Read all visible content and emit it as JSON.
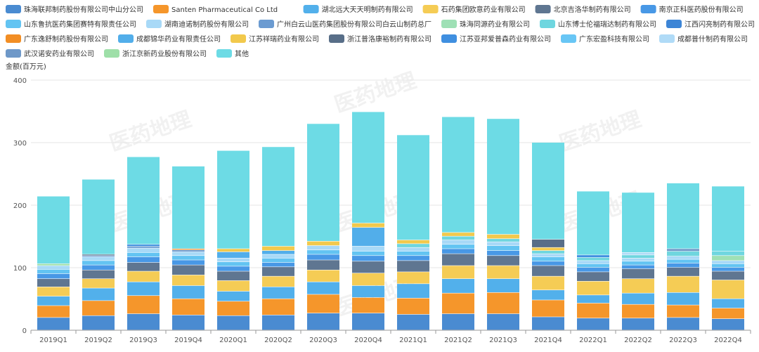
{
  "chart_data": {
    "type": "bar",
    "stacked": true,
    "ylabel": "金额(百万元)",
    "ylim": [
      0,
      400
    ],
    "yticks": [
      0,
      100,
      200,
      300,
      400
    ],
    "watermark": "医药地理",
    "categories": [
      "2019Q1",
      "2019Q2",
      "2019Q3",
      "2019Q4",
      "2020Q1",
      "2020Q2",
      "2020Q3",
      "2020Q4",
      "2021Q1",
      "2021Q2",
      "2021Q3",
      "2021Q4",
      "2022Q1",
      "2022Q2",
      "2022Q3",
      "2022Q4"
    ],
    "series": [
      {
        "name": "珠海联邦制药股份有限公司中山分公司",
        "color": "#4a8bd1",
        "values": [
          20,
          23,
          26,
          24,
          23,
          24,
          27,
          27,
          25,
          26,
          26,
          21,
          19,
          19,
          20,
          18
        ]
      },
      {
        "name": "Santen Pharmaceutical Co Ltd",
        "color": "#f5962b",
        "values": [
          19,
          24,
          29,
          26,
          23,
          26,
          30,
          25,
          26,
          33,
          34,
          27,
          24,
          22,
          20,
          17
        ]
      },
      {
        "name": "湖北远大天天明制药有限公司",
        "color": "#52b0eb",
        "values": [
          15,
          20,
          22,
          21,
          16,
          19,
          20,
          19,
          23,
          23,
          22,
          16,
          13,
          18,
          20,
          15
        ]
      },
      {
        "name": "石药集团欧意药业有限公司",
        "color": "#f5cc55",
        "values": [
          15,
          15,
          17,
          17,
          17,
          17,
          19,
          20,
          19,
          21,
          21,
          22,
          22,
          23,
          26,
          30
        ]
      },
      {
        "name": "北京吉洛华制药有限公司",
        "color": "#5f7691",
        "values": [
          13,
          14,
          14,
          16,
          15,
          15,
          16,
          19,
          18,
          19,
          16,
          17,
          15,
          16,
          14,
          14
        ]
      },
      {
        "name": "南京正科医药股份有限公司",
        "color": "#4898e6",
        "values": [
          8,
          8,
          9,
          8,
          8,
          7,
          9,
          9,
          8,
          8,
          8,
          7,
          7,
          6,
          7,
          6
        ]
      },
      {
        "name": "山东鲁抗医药集团赛特有限责任公司",
        "color": "#63c4f2",
        "values": [
          7,
          7,
          7,
          7,
          7,
          7,
          7,
          7,
          7,
          7,
          8,
          7,
          6,
          6,
          6,
          6
        ]
      },
      {
        "name": "湖南迪诺制药股份有限公司",
        "color": "#a8d9f7",
        "values": [
          6,
          6,
          7,
          6,
          6,
          6,
          7,
          8,
          6,
          7,
          6,
          5,
          5,
          5,
          5,
          5
        ]
      },
      {
        "name": "广州白云山医药集团股份有限公司白云山制药总厂",
        "color": "#6b9bd1",
        "values": [
          0,
          2,
          3,
          3,
          0,
          0,
          0,
          0,
          0,
          0,
          0,
          0,
          0,
          0,
          0,
          0
        ]
      },
      {
        "name": "珠海同源药业有限公司",
        "color": "#9ee0b5",
        "values": [
          0,
          0,
          0,
          0,
          0,
          0,
          0,
          0,
          0,
          0,
          0,
          0,
          0,
          0,
          0,
          8
        ]
      },
      {
        "name": "山东博士伦福瑞达制药有限公司",
        "color": "#6fd6df",
        "values": [
          0,
          0,
          0,
          0,
          0,
          0,
          0,
          0,
          6,
          6,
          5,
          5,
          5,
          5,
          8,
          7
        ]
      },
      {
        "name": "江西闪亮制药有限公司",
        "color": "#3d85d6",
        "values": [
          0,
          0,
          0,
          0,
          0,
          0,
          0,
          0,
          0,
          0,
          0,
          0,
          0,
          0,
          0,
          0
        ]
      },
      {
        "name": "广东逸舒制药股份有限公司",
        "color": "#f28e24",
        "values": [
          0,
          0,
          0,
          2,
          0,
          0,
          0,
          0,
          0,
          0,
          0,
          0,
          0,
          0,
          0,
          0
        ]
      },
      {
        "name": "成都锦华药业有限责任公司",
        "color": "#52aeea",
        "values": [
          0,
          0,
          0,
          0,
          10,
          6,
          0,
          30,
          0,
          0,
          0,
          0,
          0,
          0,
          0,
          0
        ]
      },
      {
        "name": "江苏祥瑞药业有限公司",
        "color": "#f2c94c",
        "values": [
          0,
          0,
          0,
          0,
          5,
          7,
          7,
          7,
          6,
          6,
          7,
          5,
          0,
          0,
          0,
          0
        ]
      },
      {
        "name": "浙江普洛康裕制药有限公司",
        "color": "#586e88",
        "values": [
          0,
          2,
          0,
          0,
          0,
          0,
          0,
          0,
          0,
          0,
          0,
          13,
          0,
          0,
          0,
          0
        ]
      },
      {
        "name": "江苏亚邦爱普森药业有限公司",
        "color": "#3f8fe0",
        "values": [
          0,
          0,
          3,
          0,
          0,
          0,
          0,
          0,
          0,
          0,
          0,
          0,
          4,
          0,
          0,
          0
        ]
      },
      {
        "name": "广东宏盈科技有限公司",
        "color": "#68c6f5",
        "values": [
          0,
          0,
          0,
          0,
          0,
          0,
          0,
          0,
          0,
          0,
          0,
          0,
          0,
          0,
          0,
          0
        ]
      },
      {
        "name": "成都普什制药有限公司",
        "color": "#b0dbf7",
        "values": [
          0,
          0,
          0,
          0,
          0,
          0,
          0,
          0,
          0,
          0,
          0,
          0,
          0,
          4,
          0,
          0
        ]
      },
      {
        "name": "武汉诺安药业有限公司",
        "color": "#6e98c8",
        "values": [
          0,
          0,
          0,
          0,
          0,
          0,
          0,
          0,
          0,
          0,
          0,
          0,
          0,
          0,
          4,
          0
        ]
      },
      {
        "name": "浙江京新药业股份有限公司",
        "color": "#9edfa8",
        "values": [
          3,
          0,
          0,
          0,
          0,
          0,
          0,
          0,
          0,
          0,
          0,
          0,
          0,
          0,
          0,
          0
        ]
      },
      {
        "name": "其他",
        "color": "#6ddbe5",
        "values": [
          108,
          120,
          140,
          132,
          157,
          159,
          188,
          178,
          168,
          185,
          185,
          155,
          102,
          96,
          105,
          104
        ]
      }
    ]
  }
}
